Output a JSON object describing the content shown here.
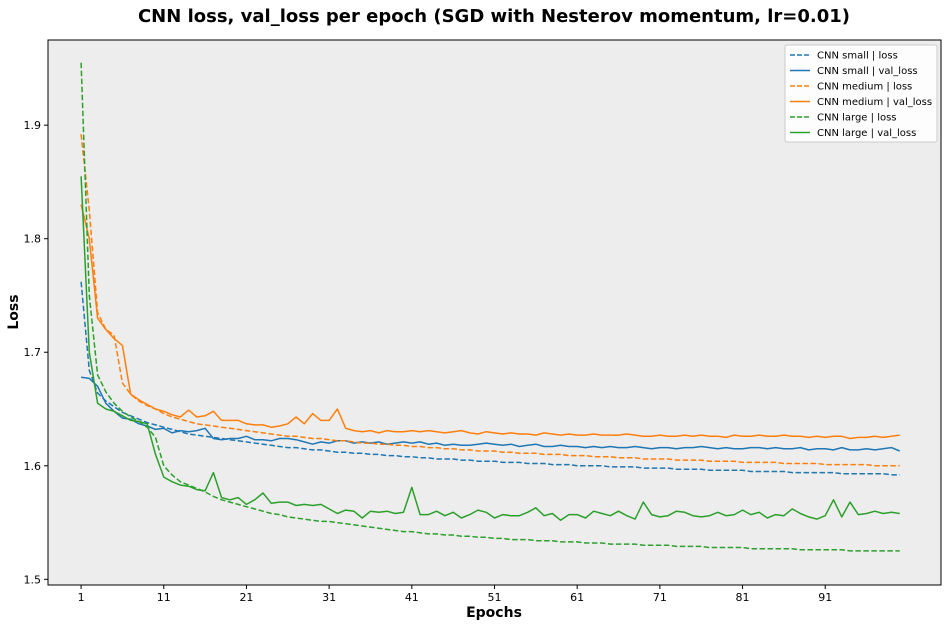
{
  "chart_data": {
    "type": "line",
    "title": "CNN loss, val_loss per epoch (SGD with Nesterov momentum, lr=0.01)",
    "xlabel": "Epochs",
    "ylabel": "Loss",
    "xlim": [
      -4,
      104
    ],
    "ylim": [
      1.495,
      1.975
    ],
    "xticks": [
      "1",
      "11",
      "21",
      "31",
      "41",
      "51",
      "61",
      "71",
      "81",
      "91"
    ],
    "yticks": [
      "1.5",
      "1.6",
      "1.7",
      "1.8",
      "1.9"
    ],
    "grid": false,
    "legend_position": "top-right",
    "x": [
      0,
      1,
      2,
      3,
      4,
      5,
      6,
      7,
      8,
      9,
      10,
      11,
      12,
      13,
      14,
      15,
      16,
      17,
      18,
      19,
      20,
      21,
      22,
      23,
      24,
      25,
      26,
      27,
      28,
      29,
      30,
      31,
      32,
      33,
      34,
      35,
      36,
      37,
      38,
      39,
      40,
      41,
      42,
      43,
      44,
      45,
      46,
      47,
      48,
      49,
      50,
      51,
      52,
      53,
      54,
      55,
      56,
      57,
      58,
      59,
      60,
      61,
      62,
      63,
      64,
      65,
      66,
      67,
      68,
      69,
      70,
      71,
      72,
      73,
      74,
      75,
      76,
      77,
      78,
      79,
      80,
      81,
      82,
      83,
      84,
      85,
      86,
      87,
      88,
      89,
      90,
      91,
      92,
      93,
      94,
      95,
      96,
      97,
      98,
      99
    ],
    "series": [
      {
        "name": "CNN small | loss",
        "color": "#1f77b4",
        "style": "dashed",
        "values": [
          1.762,
          1.684,
          1.664,
          1.657,
          1.652,
          1.647,
          1.644,
          1.641,
          1.638,
          1.636,
          1.634,
          1.632,
          1.63,
          1.628,
          1.627,
          1.626,
          1.625,
          1.624,
          1.623,
          1.622,
          1.621,
          1.62,
          1.619,
          1.618,
          1.617,
          1.616,
          1.616,
          1.615,
          1.614,
          1.614,
          1.613,
          1.612,
          1.612,
          1.611,
          1.611,
          1.61,
          1.61,
          1.609,
          1.609,
          1.608,
          1.608,
          1.607,
          1.607,
          1.606,
          1.606,
          1.606,
          1.605,
          1.605,
          1.604,
          1.604,
          1.604,
          1.603,
          1.603,
          1.603,
          1.602,
          1.602,
          1.602,
          1.601,
          1.601,
          1.601,
          1.6,
          1.6,
          1.6,
          1.6,
          1.599,
          1.599,
          1.599,
          1.599,
          1.598,
          1.598,
          1.598,
          1.598,
          1.597,
          1.597,
          1.597,
          1.597,
          1.596,
          1.596,
          1.596,
          1.596,
          1.596,
          1.595,
          1.595,
          1.595,
          1.595,
          1.595,
          1.594,
          1.594,
          1.594,
          1.594,
          1.594,
          1.594,
          1.593,
          1.593,
          1.593,
          1.593,
          1.593,
          1.593,
          1.592,
          1.592
        ]
      },
      {
        "name": "CNN small | val_loss",
        "color": "#1f77b4",
        "style": "solid",
        "values": [
          1.678,
          1.677,
          1.67,
          1.655,
          1.648,
          1.642,
          1.641,
          1.637,
          1.635,
          1.632,
          1.633,
          1.629,
          1.631,
          1.63,
          1.631,
          1.633,
          1.624,
          1.623,
          1.624,
          1.624,
          1.626,
          1.623,
          1.623,
          1.622,
          1.624,
          1.624,
          1.623,
          1.621,
          1.619,
          1.621,
          1.62,
          1.622,
          1.622,
          1.62,
          1.621,
          1.62,
          1.621,
          1.619,
          1.62,
          1.621,
          1.62,
          1.621,
          1.619,
          1.62,
          1.618,
          1.619,
          1.618,
          1.618,
          1.619,
          1.62,
          1.619,
          1.618,
          1.619,
          1.617,
          1.618,
          1.619,
          1.617,
          1.617,
          1.618,
          1.617,
          1.617,
          1.616,
          1.617,
          1.616,
          1.617,
          1.616,
          1.616,
          1.617,
          1.616,
          1.615,
          1.616,
          1.616,
          1.615,
          1.616,
          1.616,
          1.617,
          1.616,
          1.615,
          1.616,
          1.615,
          1.615,
          1.616,
          1.616,
          1.615,
          1.616,
          1.615,
          1.615,
          1.616,
          1.614,
          1.615,
          1.615,
          1.614,
          1.616,
          1.614,
          1.614,
          1.615,
          1.614,
          1.615,
          1.616,
          1.613
        ]
      },
      {
        "name": "CNN medium | loss",
        "color": "#ff7f0e",
        "style": "dashed",
        "values": [
          1.892,
          1.825,
          1.735,
          1.72,
          1.715,
          1.673,
          1.663,
          1.657,
          1.653,
          1.65,
          1.646,
          1.643,
          1.641,
          1.639,
          1.637,
          1.636,
          1.635,
          1.634,
          1.633,
          1.632,
          1.631,
          1.63,
          1.629,
          1.628,
          1.627,
          1.626,
          1.626,
          1.625,
          1.624,
          1.624,
          1.623,
          1.622,
          1.622,
          1.621,
          1.62,
          1.62,
          1.619,
          1.619,
          1.618,
          1.618,
          1.617,
          1.617,
          1.616,
          1.616,
          1.615,
          1.615,
          1.614,
          1.614,
          1.613,
          1.613,
          1.613,
          1.612,
          1.612,
          1.611,
          1.611,
          1.611,
          1.61,
          1.61,
          1.61,
          1.609,
          1.609,
          1.609,
          1.608,
          1.608,
          1.608,
          1.607,
          1.607,
          1.607,
          1.606,
          1.606,
          1.606,
          1.606,
          1.605,
          1.605,
          1.605,
          1.605,
          1.604,
          1.604,
          1.604,
          1.604,
          1.603,
          1.603,
          1.603,
          1.603,
          1.603,
          1.602,
          1.602,
          1.602,
          1.602,
          1.602,
          1.601,
          1.601,
          1.601,
          1.601,
          1.601,
          1.601,
          1.6,
          1.6,
          1.6,
          1.6
        ]
      },
      {
        "name": "CNN medium | val_loss",
        "color": "#ff7f0e",
        "style": "solid",
        "values": [
          1.83,
          1.8,
          1.73,
          1.72,
          1.712,
          1.706,
          1.663,
          1.658,
          1.654,
          1.65,
          1.648,
          1.645,
          1.643,
          1.649,
          1.643,
          1.644,
          1.648,
          1.64,
          1.64,
          1.64,
          1.637,
          1.636,
          1.636,
          1.634,
          1.635,
          1.637,
          1.643,
          1.637,
          1.646,
          1.64,
          1.64,
          1.65,
          1.633,
          1.631,
          1.63,
          1.631,
          1.629,
          1.631,
          1.63,
          1.63,
          1.631,
          1.63,
          1.631,
          1.63,
          1.629,
          1.63,
          1.631,
          1.629,
          1.628,
          1.63,
          1.629,
          1.628,
          1.629,
          1.628,
          1.628,
          1.627,
          1.629,
          1.628,
          1.627,
          1.628,
          1.627,
          1.627,
          1.628,
          1.627,
          1.627,
          1.627,
          1.628,
          1.627,
          1.626,
          1.626,
          1.627,
          1.626,
          1.626,
          1.627,
          1.626,
          1.627,
          1.626,
          1.626,
          1.625,
          1.627,
          1.626,
          1.626,
          1.627,
          1.626,
          1.626,
          1.627,
          1.626,
          1.626,
          1.625,
          1.626,
          1.625,
          1.626,
          1.626,
          1.624,
          1.625,
          1.625,
          1.626,
          1.625,
          1.626,
          1.627
        ]
      },
      {
        "name": "CNN large | loss",
        "color": "#2ca02c",
        "style": "dashed",
        "values": [
          1.955,
          1.75,
          1.68,
          1.665,
          1.655,
          1.648,
          1.643,
          1.639,
          1.634,
          1.625,
          1.6,
          1.592,
          1.586,
          1.583,
          1.58,
          1.577,
          1.573,
          1.57,
          1.568,
          1.566,
          1.564,
          1.562,
          1.56,
          1.558,
          1.557,
          1.555,
          1.554,
          1.553,
          1.552,
          1.551,
          1.551,
          1.55,
          1.549,
          1.548,
          1.547,
          1.546,
          1.545,
          1.544,
          1.543,
          1.542,
          1.542,
          1.541,
          1.54,
          1.54,
          1.539,
          1.539,
          1.538,
          1.538,
          1.537,
          1.537,
          1.536,
          1.536,
          1.535,
          1.535,
          1.535,
          1.534,
          1.534,
          1.534,
          1.533,
          1.533,
          1.533,
          1.532,
          1.532,
          1.532,
          1.531,
          1.531,
          1.531,
          1.531,
          1.53,
          1.53,
          1.53,
          1.53,
          1.529,
          1.529,
          1.529,
          1.529,
          1.528,
          1.528,
          1.528,
          1.528,
          1.528,
          1.527,
          1.527,
          1.527,
          1.527,
          1.527,
          1.527,
          1.526,
          1.526,
          1.526,
          1.526,
          1.526,
          1.526,
          1.525,
          1.525,
          1.525,
          1.525,
          1.525,
          1.525,
          1.525
        ]
      },
      {
        "name": "CNN large | val_loss",
        "color": "#2ca02c",
        "style": "solid",
        "values": [
          1.855,
          1.7,
          1.655,
          1.65,
          1.648,
          1.644,
          1.64,
          1.639,
          1.637,
          1.61,
          1.59,
          1.586,
          1.583,
          1.582,
          1.579,
          1.578,
          1.594,
          1.572,
          1.57,
          1.572,
          1.566,
          1.57,
          1.576,
          1.567,
          1.568,
          1.568,
          1.565,
          1.566,
          1.565,
          1.566,
          1.562,
          1.558,
          1.561,
          1.56,
          1.554,
          1.56,
          1.559,
          1.56,
          1.558,
          1.559,
          1.581,
          1.557,
          1.557,
          1.56,
          1.556,
          1.559,
          1.554,
          1.557,
          1.561,
          1.559,
          1.554,
          1.557,
          1.556,
          1.556,
          1.559,
          1.563,
          1.556,
          1.558,
          1.552,
          1.557,
          1.557,
          1.554,
          1.56,
          1.558,
          1.556,
          1.56,
          1.556,
          1.553,
          1.568,
          1.557,
          1.555,
          1.556,
          1.56,
          1.559,
          1.556,
          1.555,
          1.556,
          1.559,
          1.556,
          1.557,
          1.561,
          1.557,
          1.559,
          1.554,
          1.557,
          1.556,
          1.562,
          1.558,
          1.555,
          1.553,
          1.556,
          1.57,
          1.555,
          1.568,
          1.557,
          1.558,
          1.56,
          1.558,
          1.559,
          1.558
        ]
      }
    ]
  }
}
